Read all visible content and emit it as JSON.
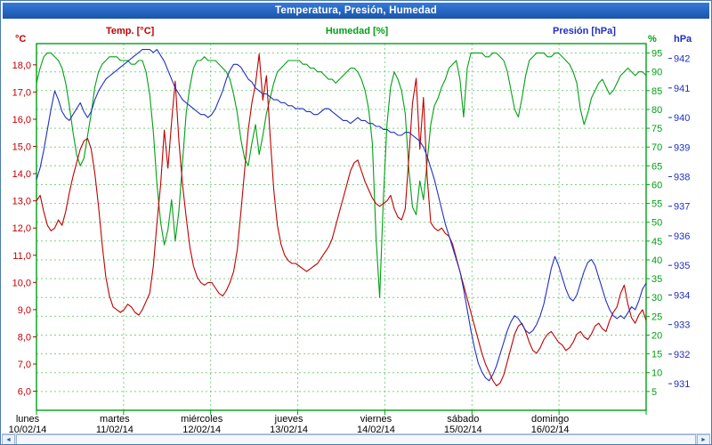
{
  "window": {
    "title": "Temperatura, Presión, Humedad"
  },
  "legend": {
    "temp": "Temp.  [°C]",
    "humidity": "Humedad [%]",
    "pressure": "Presión [hPa]"
  },
  "axes": {
    "temp": {
      "unit": "°C",
      "color": "#c00000",
      "ticks": [
        {
          "value": 18,
          "label": "18,0"
        },
        {
          "value": 17,
          "label": "17,0"
        },
        {
          "value": 16,
          "label": "16,0"
        },
        {
          "value": 15,
          "label": "15,0"
        },
        {
          "value": 14,
          "label": "14,0"
        },
        {
          "value": 13,
          "label": "13,0"
        },
        {
          "value": 12,
          "label": "12,0"
        },
        {
          "value": 11,
          "label": "11,0"
        },
        {
          "value": 10,
          "label": "10,0"
        },
        {
          "value": 9,
          "label": "9,0"
        },
        {
          "value": 8,
          "label": "8,0"
        },
        {
          "value": 7,
          "label": "7,0"
        },
        {
          "value": 6,
          "label": "6,0"
        }
      ]
    },
    "humidity": {
      "unit": "%",
      "color": "#00a014",
      "ticks": [
        {
          "value": 95,
          "label": "95"
        },
        {
          "value": 90,
          "label": "90"
        },
        {
          "value": 85,
          "label": "85"
        },
        {
          "value": 80,
          "label": "80"
        },
        {
          "value": 75,
          "label": "75"
        },
        {
          "value": 70,
          "label": "70"
        },
        {
          "value": 65,
          "label": "65"
        },
        {
          "value": 60,
          "label": "60"
        },
        {
          "value": 55,
          "label": "55"
        },
        {
          "value": 50,
          "label": "50"
        },
        {
          "value": 45,
          "label": "45"
        },
        {
          "value": 40,
          "label": "40"
        },
        {
          "value": 35,
          "label": "35"
        },
        {
          "value": 30,
          "label": "30"
        },
        {
          "value": 25,
          "label": "25"
        },
        {
          "value": 20,
          "label": "20"
        },
        {
          "value": 15,
          "label": "15"
        },
        {
          "value": 10,
          "label": "10"
        },
        {
          "value": 5,
          "label": "5"
        }
      ]
    },
    "pressure": {
      "unit": "hPa",
      "color": "#2030c0",
      "ticks": [
        {
          "value": 942,
          "label": "942"
        },
        {
          "value": 941,
          "label": "941"
        },
        {
          "value": 940,
          "label": "940"
        },
        {
          "value": 939,
          "label": "939"
        },
        {
          "value": 938,
          "label": "938"
        },
        {
          "value": 937,
          "label": "937"
        },
        {
          "value": 936,
          "label": "936"
        },
        {
          "value": 935,
          "label": "935"
        },
        {
          "value": 934,
          "label": "934"
        },
        {
          "value": 933,
          "label": "933"
        },
        {
          "value": 932,
          "label": "932"
        },
        {
          "value": 931,
          "label": "931"
        }
      ]
    }
  },
  "x_axis": {
    "days": [
      {
        "name": "lunes",
        "date": "10/02/14"
      },
      {
        "name": "martes",
        "date": "11/02/14"
      },
      {
        "name": "miércoles",
        "date": "12/02/14"
      },
      {
        "name": "jueves",
        "date": "13/02/14"
      },
      {
        "name": "viernes",
        "date": "14/02/14"
      },
      {
        "name": "sábado",
        "date": "15/02/14"
      },
      {
        "name": "domingo",
        "date": "16/02/14"
      }
    ]
  },
  "scrollbar": {
    "left_arrow": "◄",
    "right_arrow": "►"
  },
  "chart_data": {
    "type": "line",
    "title": "Temperatura, Presión, Humedad",
    "x_days": [
      "10/02/14",
      "11/02/14",
      "12/02/14",
      "13/02/14",
      "14/02/14",
      "15/02/14",
      "16/02/14"
    ],
    "sampling_interval_hours": 1,
    "grid": true,
    "axis_ranges": {
      "temp_c": [
        6,
        18
      ],
      "humidity_pct": [
        5,
        95
      ],
      "pressure_hpa": [
        931,
        942
      ]
    },
    "series": [
      {
        "name": "Humedad [%]",
        "axis": "humidity",
        "color": "#00a014",
        "values": [
          87,
          91,
          94,
          95,
          95,
          94,
          93,
          91,
          87,
          81,
          74,
          68,
          65,
          67,
          73,
          79,
          86,
          90,
          92,
          93,
          94,
          94,
          94,
          93,
          93,
          93,
          92,
          92,
          93,
          93,
          90,
          84,
          74,
          60,
          50,
          44,
          48,
          56,
          45,
          53,
          66,
          79,
          86,
          91,
          93,
          93,
          94,
          93,
          93,
          93,
          92,
          91,
          90,
          88,
          84,
          79,
          72,
          67,
          65,
          71,
          76,
          68,
          73,
          79,
          83,
          87,
          90,
          91,
          92,
          93,
          93,
          93,
          93,
          92,
          92,
          91,
          91,
          90,
          90,
          89,
          88,
          88,
          87,
          88,
          89,
          90,
          91,
          91,
          90,
          88,
          85,
          80,
          71,
          46,
          30,
          56,
          76,
          86,
          90,
          88,
          85,
          79,
          64,
          54,
          52,
          61,
          56,
          66,
          76,
          81,
          83,
          86,
          88,
          91,
          92,
          93,
          88,
          78,
          91,
          95,
          95,
          95,
          95,
          94,
          94,
          95,
          95,
          94,
          93,
          90,
          85,
          80,
          78,
          83,
          89,
          93,
          94,
          95,
          95,
          95,
          94,
          94,
          95,
          95,
          94,
          93,
          92,
          90,
          87,
          80,
          76,
          79,
          83,
          85,
          87,
          88,
          86,
          84,
          85,
          87,
          89,
          90,
          91,
          90,
          89,
          90,
          90,
          89
        ]
      },
      {
        "name": "Temp. [°C]",
        "axis": "temp",
        "color": "#c00000",
        "values": [
          13.0,
          13.2,
          12.6,
          12.1,
          11.9,
          12.0,
          12.3,
          12.1,
          12.6,
          13.3,
          13.9,
          14.4,
          14.9,
          15.2,
          15.3,
          14.9,
          14.0,
          12.8,
          11.4,
          10.2,
          9.5,
          9.1,
          9.0,
          8.9,
          9.0,
          9.2,
          9.1,
          8.9,
          8.8,
          9.0,
          9.3,
          9.6,
          10.6,
          12.2,
          13.6,
          15.6,
          14.2,
          15.9,
          17.4,
          15.2,
          13.6,
          12.4,
          11.3,
          10.6,
          10.2,
          10.0,
          9.9,
          10.0,
          10.0,
          9.8,
          9.6,
          9.5,
          9.7,
          10.0,
          10.4,
          11.2,
          12.6,
          14.1,
          15.6,
          16.6,
          17.3,
          18.4,
          16.7,
          17.6,
          15.4,
          13.4,
          12.1,
          11.4,
          11.0,
          10.8,
          10.7,
          10.7,
          10.6,
          10.5,
          10.4,
          10.5,
          10.6,
          10.7,
          10.9,
          11.1,
          11.3,
          11.6,
          12.1,
          12.6,
          13.1,
          13.6,
          14.1,
          14.4,
          14.5,
          14.1,
          13.7,
          13.4,
          13.1,
          12.9,
          12.8,
          12.9,
          13.0,
          13.2,
          12.7,
          12.4,
          12.3,
          12.7,
          14.6,
          16.6,
          17.5,
          14.9,
          16.8,
          13.9,
          12.2,
          12.0,
          11.9,
          12.0,
          11.8,
          11.7,
          11.4,
          10.9,
          10.4,
          9.9,
          9.4,
          8.9,
          8.4,
          7.9,
          7.4,
          7.0,
          6.7,
          6.4,
          6.2,
          6.3,
          6.6,
          7.1,
          7.6,
          8.1,
          8.4,
          8.5,
          8.2,
          7.8,
          7.5,
          7.4,
          7.6,
          7.9,
          8.1,
          8.2,
          8.0,
          7.8,
          7.7,
          7.5,
          7.6,
          7.8,
          8.1,
          8.2,
          8.0,
          7.9,
          8.1,
          8.4,
          8.5,
          8.3,
          8.2,
          8.6,
          8.9,
          9.1,
          9.6,
          9.9,
          9.2,
          8.7,
          8.5,
          8.8,
          9.0,
          8.6
        ]
      },
      {
        "name": "Presión [hPa]",
        "axis": "pressure",
        "color": "#2030c0",
        "values": [
          937.9,
          938.3,
          938.9,
          939.6,
          940.3,
          940.9,
          940.6,
          940.2,
          940.0,
          939.9,
          940.1,
          940.3,
          940.5,
          940.2,
          940.0,
          940.2,
          940.6,
          940.9,
          941.1,
          941.3,
          941.4,
          941.5,
          941.6,
          941.7,
          941.8,
          941.9,
          942.0,
          942.1,
          942.2,
          942.3,
          942.3,
          942.3,
          942.2,
          942.3,
          942.1,
          941.9,
          941.6,
          941.3,
          941.0,
          940.8,
          940.6,
          940.5,
          940.4,
          940.3,
          940.2,
          940.1,
          940.1,
          940.0,
          940.1,
          940.3,
          940.6,
          940.9,
          941.3,
          941.6,
          941.8,
          941.8,
          941.7,
          941.5,
          941.3,
          941.2,
          941.0,
          940.9,
          940.8,
          940.8,
          940.7,
          940.6,
          940.6,
          940.5,
          940.5,
          940.4,
          940.4,
          940.3,
          940.3,
          940.3,
          940.2,
          940.2,
          940.1,
          940.1,
          940.2,
          940.3,
          940.3,
          940.2,
          940.1,
          940.0,
          939.9,
          939.9,
          939.8,
          939.9,
          940.0,
          939.9,
          939.9,
          939.8,
          939.8,
          939.7,
          939.7,
          939.6,
          939.6,
          939.5,
          939.5,
          939.4,
          939.4,
          939.5,
          939.5,
          939.4,
          939.3,
          939.2,
          939.0,
          938.7,
          938.3,
          937.9,
          937.4,
          936.9,
          936.4,
          936.0,
          935.6,
          935.2,
          934.8,
          934.2,
          933.5,
          932.8,
          932.2,
          931.7,
          931.4,
          931.2,
          931.1,
          931.3,
          931.6,
          932.0,
          932.4,
          932.8,
          933.1,
          933.3,
          933.2,
          933.0,
          932.8,
          932.7,
          932.8,
          933.0,
          933.3,
          933.7,
          934.3,
          934.9,
          935.3,
          935.0,
          934.6,
          934.2,
          933.9,
          933.8,
          934.0,
          934.4,
          934.8,
          935.1,
          935.2,
          935.0,
          934.6,
          934.2,
          933.8,
          933.5,
          933.3,
          933.2,
          933.3,
          933.2,
          933.4,
          933.6,
          933.5,
          933.8,
          934.2,
          934.4
        ]
      }
    ]
  }
}
